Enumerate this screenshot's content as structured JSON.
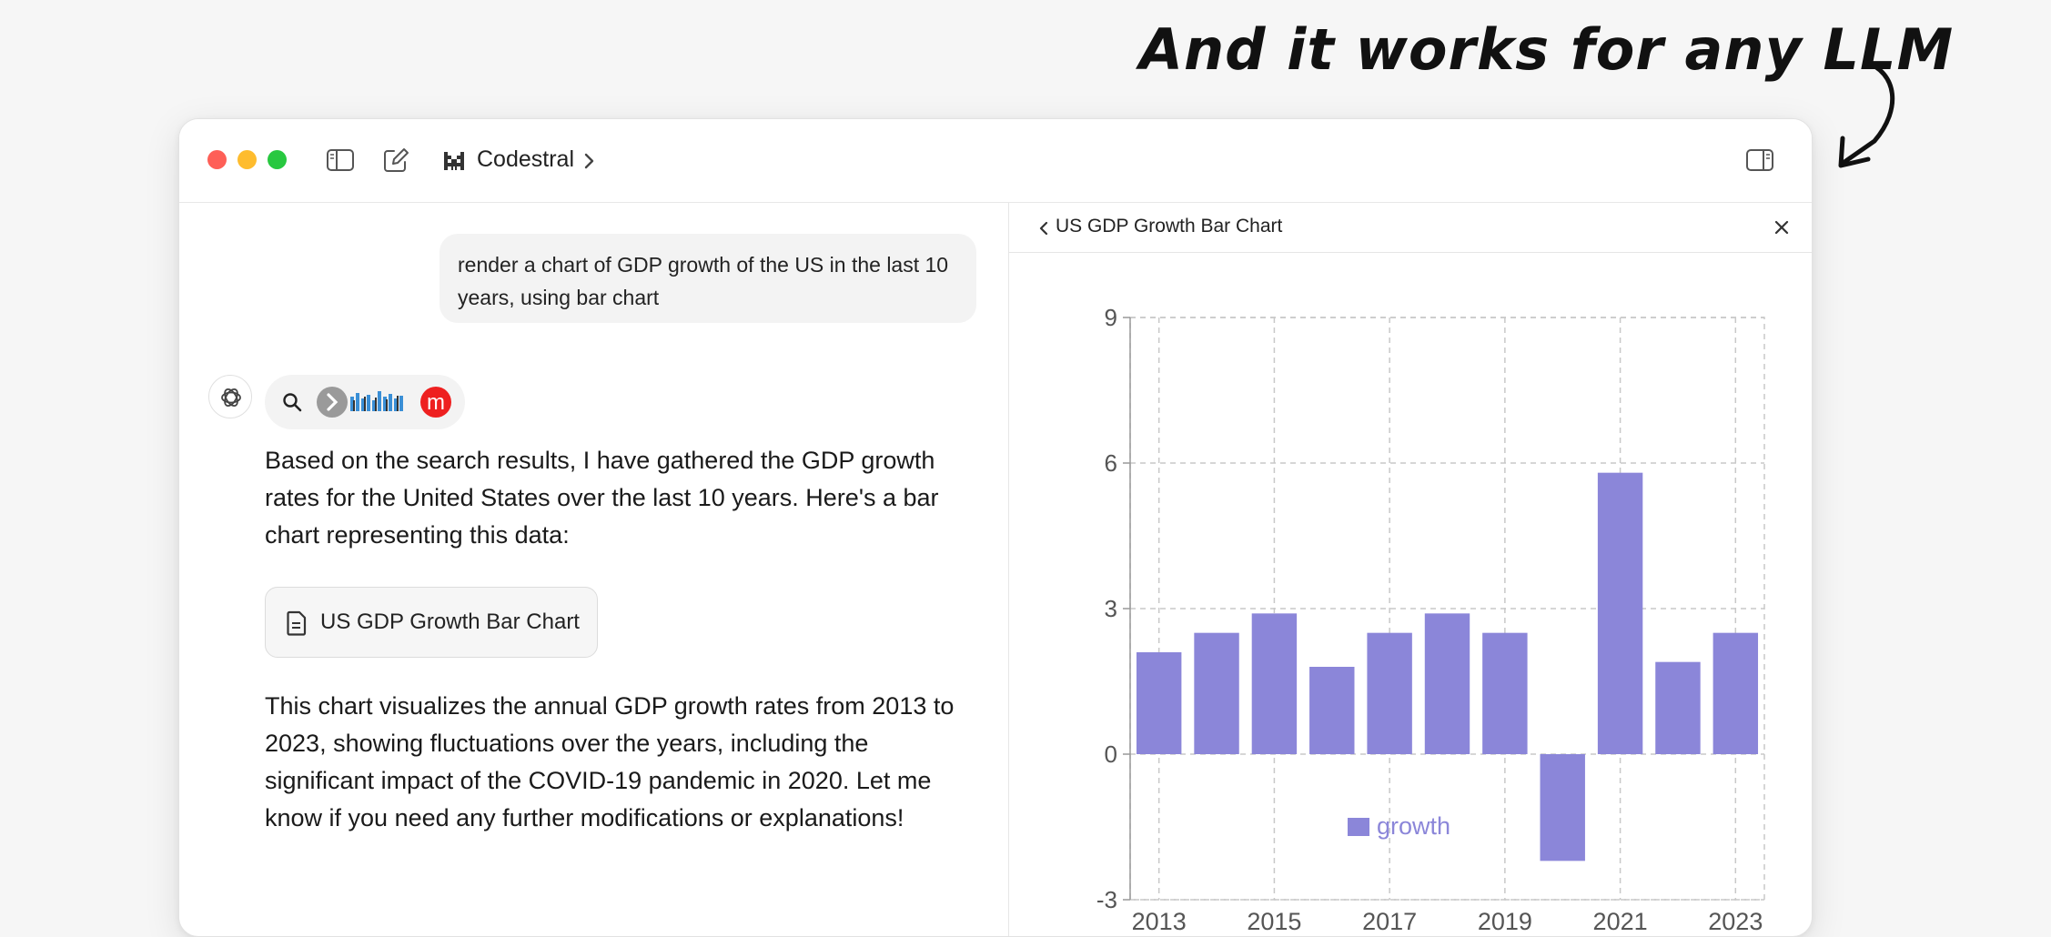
{
  "tagline": "And it works for any LLM",
  "titlebar": {
    "model_name": "Codestral"
  },
  "chat": {
    "user_message": "render a chart of GDP growth of the US in the last 10 years, using bar chart",
    "answer_intro": "Based on the search results, I have gathered the GDP growth rates for the United States over the last 10 years. Here's a bar chart representing this data:",
    "artifact_label": "US GDP Growth Bar Chart",
    "answer_outro": "This chart visualizes the annual GDP growth rates from 2013 to 2023, showing fluctuations over the years, including the significant impact of the COVID-19 pandemic in 2020. Let me know if you need any further modifications or explanations!"
  },
  "panel": {
    "title": "US GDP Growth Bar Chart"
  },
  "icons": {
    "sidebar": "sidebar-toggle-icon",
    "compose": "compose-icon",
    "model": "model-logo-icon",
    "panel": "right-panel-toggle-icon",
    "search": "search-icon",
    "document": "document-icon"
  },
  "colors": {
    "bar": "#8b86d9",
    "legend_text": "#8b86d9",
    "accent_red": "#ee2020"
  },
  "chart_data": {
    "type": "bar",
    "title": "",
    "categories": [
      "2013",
      "2014",
      "2015",
      "2016",
      "2017",
      "2018",
      "2019",
      "2020",
      "2021",
      "2022",
      "2023"
    ],
    "series": [
      {
        "name": "growth",
        "values": [
          2.1,
          2.5,
          2.9,
          1.8,
          2.5,
          2.9,
          2.5,
          -2.2,
          5.8,
          1.9,
          2.5
        ]
      }
    ],
    "xtick_labels": [
      "2013",
      "2015",
      "2017",
      "2019",
      "2021",
      "2023"
    ],
    "yticks": [
      -3,
      0,
      3,
      6,
      9
    ],
    "ylim": [
      -3,
      9
    ],
    "grid": true,
    "legend": "bottom-center"
  }
}
